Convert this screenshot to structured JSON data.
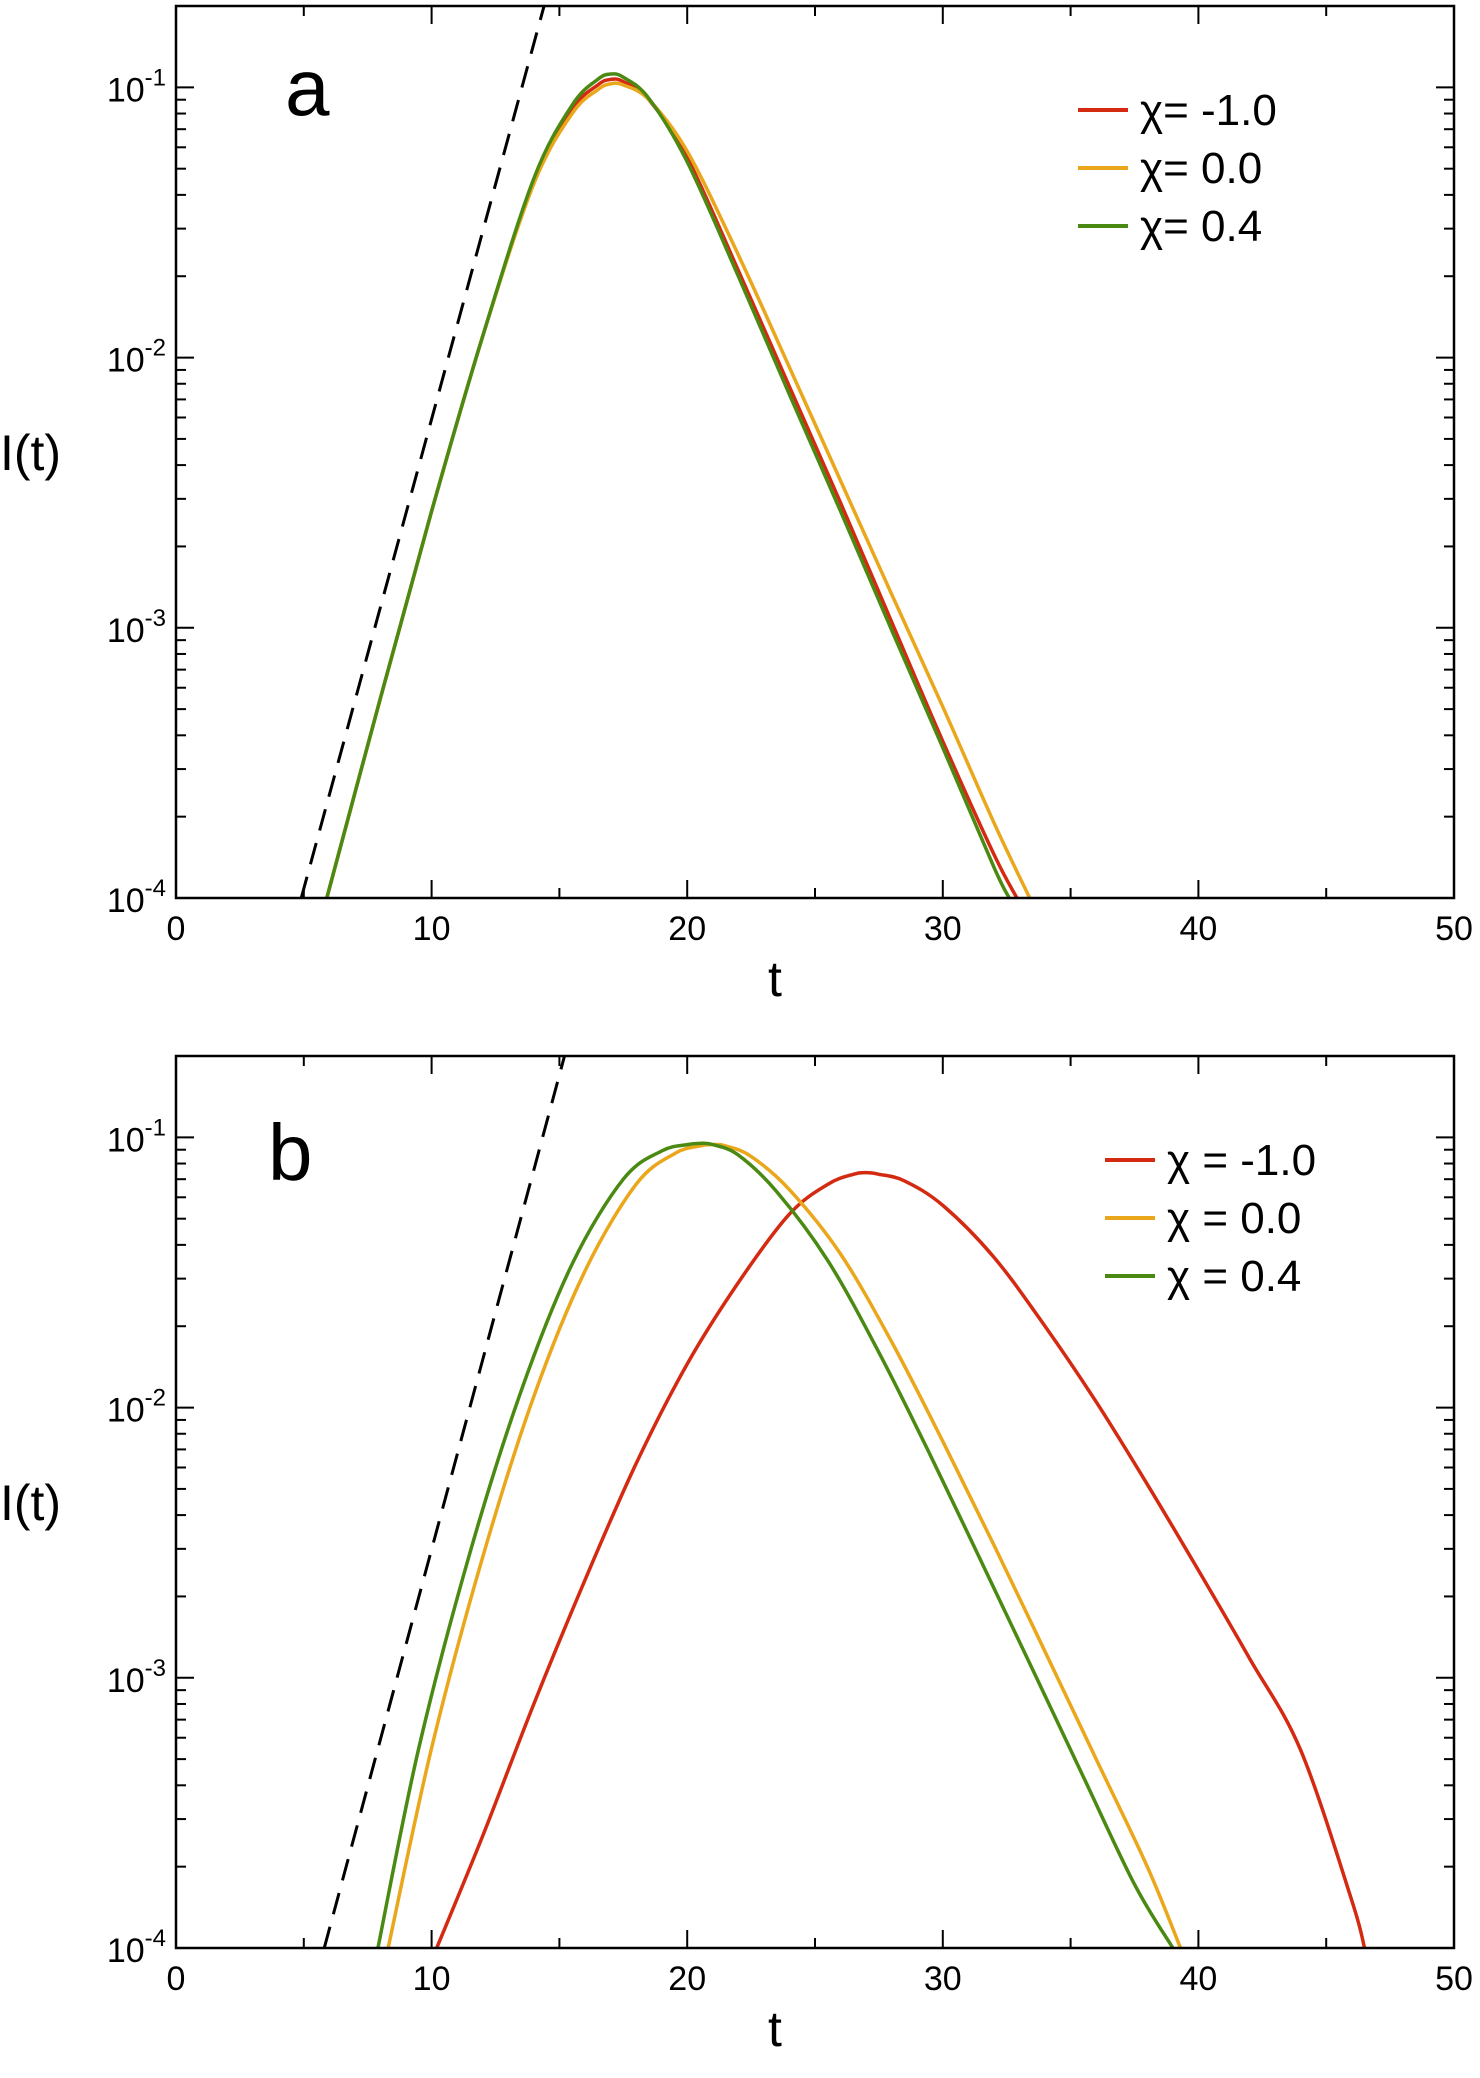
{
  "chart_data": [
    {
      "type": "line",
      "panel_label": "a",
      "xlabel": "t",
      "ylabel": "I(t)",
      "yscale": "log",
      "xlim": [
        0,
        50
      ],
      "ylim": [
        0.0001,
        0.2
      ],
      "x_ticks": [
        "0",
        "10",
        "20",
        "30",
        "40",
        "50"
      ],
      "y_ticks": [
        {
          "base": "10",
          "exp": "-1",
          "value": 0.1
        },
        {
          "base": "10",
          "exp": "-2",
          "value": 0.01
        },
        {
          "base": "10",
          "exp": "-3",
          "value": 0.001
        },
        {
          "base": "10",
          "exp": "-4",
          "value": 0.0001
        }
      ],
      "legend_position": "top-right",
      "series": [
        {
          "name": "χ= -1.0",
          "color": "#d42a12",
          "x": [
            5.9,
            8,
            10,
            12,
            14,
            15.5,
            16.5,
            17,
            17.5,
            18.5,
            20,
            22,
            24,
            26,
            28,
            30,
            32,
            32.9
          ],
          "y": [
            0.0001,
            0.00055,
            0.0027,
            0.012,
            0.045,
            0.083,
            0.102,
            0.107,
            0.105,
            0.09,
            0.055,
            0.021,
            0.0078,
            0.0029,
            0.00105,
            0.00038,
            0.000145,
            0.0001
          ]
        },
        {
          "name": "χ= 0.0",
          "color": "#eaa71c",
          "x": [
            5.9,
            8,
            10,
            12,
            14,
            15.5,
            16.5,
            17,
            17.5,
            18.5,
            20,
            22,
            24,
            26,
            28,
            30,
            32,
            33.4
          ],
          "y": [
            0.0001,
            0.00055,
            0.0027,
            0.012,
            0.044,
            0.08,
            0.098,
            0.103,
            0.102,
            0.09,
            0.058,
            0.024,
            0.0092,
            0.0035,
            0.00133,
            0.00051,
            0.00019,
            0.0001
          ]
        },
        {
          "name": "χ= 0.4",
          "color": "#4b8a12",
          "x": [
            5.9,
            8,
            10,
            12,
            14,
            15.5,
            16.5,
            17,
            17.5,
            18.5,
            20,
            22,
            24,
            26,
            28,
            30,
            32,
            32.6
          ],
          "y": [
            0.0001,
            0.00055,
            0.0027,
            0.012,
            0.046,
            0.086,
            0.107,
            0.112,
            0.109,
            0.091,
            0.053,
            0.02,
            0.0073,
            0.0027,
            0.00098,
            0.00036,
            0.00013,
            0.0001
          ]
        }
      ],
      "reference_line": {
        "style": "dashed",
        "color": "#000000",
        "x": [
          4.9,
          14.4
        ],
        "y": [
          0.0001,
          0.2
        ]
      }
    },
    {
      "type": "line",
      "panel_label": "b",
      "xlabel": "t",
      "ylabel": "I(t)",
      "yscale": "log",
      "xlim": [
        0,
        50
      ],
      "ylim": [
        0.0001,
        0.2
      ],
      "x_ticks": [
        "0",
        "10",
        "20",
        "30",
        "40",
        "50"
      ],
      "y_ticks": [
        {
          "base": "10",
          "exp": "-1",
          "value": 0.1
        },
        {
          "base": "10",
          "exp": "-2",
          "value": 0.01
        },
        {
          "base": "10",
          "exp": "-3",
          "value": 0.001
        },
        {
          "base": "10",
          "exp": "-4",
          "value": 0.0001
        }
      ],
      "legend_position": "top-right",
      "series": [
        {
          "name": "χ = -1.0",
          "color": "#d42a12",
          "x": [
            10.2,
            12,
            14,
            16,
            18,
            20,
            22,
            24,
            25.5,
            26.5,
            27,
            27.5,
            28.5,
            30,
            32,
            34,
            36,
            38,
            40,
            42,
            44,
            46,
            46.5
          ],
          "y": [
            0.0001,
            0.00026,
            0.0008,
            0.0023,
            0.0062,
            0.0145,
            0.029,
            0.052,
            0.067,
            0.073,
            0.074,
            0.073,
            0.069,
            0.056,
            0.036,
            0.02,
            0.0105,
            0.0052,
            0.0025,
            0.00118,
            0.00054,
            0.00015,
            0.0001
          ]
        },
        {
          "name": "χ = 0.0",
          "color": "#eaa71c",
          "x": [
            8.3,
            10,
            12,
            14,
            16,
            18,
            19.5,
            20.5,
            21,
            21.5,
            22.5,
            24,
            26,
            28,
            30,
            32,
            34,
            36,
            38,
            39.3
          ],
          "y": [
            0.0001,
            0.00055,
            0.0028,
            0.011,
            0.032,
            0.067,
            0.087,
            0.093,
            0.094,
            0.093,
            0.085,
            0.064,
            0.037,
            0.0175,
            0.0075,
            0.0031,
            0.00125,
            0.0005,
            0.0002,
            0.0001
          ]
        },
        {
          "name": "χ = 0.4",
          "color": "#4b8a12",
          "x": [
            7.9,
            9.5,
            11.5,
            13.5,
            15.5,
            17.5,
            19,
            20,
            20.5,
            21,
            22,
            23.5,
            25.5,
            27.5,
            29.5,
            31.5,
            33.5,
            35.5,
            37.5,
            39
          ],
          "y": [
            0.0001,
            0.00055,
            0.0029,
            0.0115,
            0.034,
            0.07,
            0.089,
            0.094,
            0.095,
            0.094,
            0.086,
            0.063,
            0.035,
            0.016,
            0.0067,
            0.0027,
            0.00108,
            0.00043,
            0.000172,
            0.0001
          ]
        }
      ],
      "reference_line": {
        "style": "dashed",
        "color": "#000000",
        "x": [
          5.8,
          15.2
        ],
        "y": [
          0.0001,
          0.2
        ]
      }
    }
  ]
}
